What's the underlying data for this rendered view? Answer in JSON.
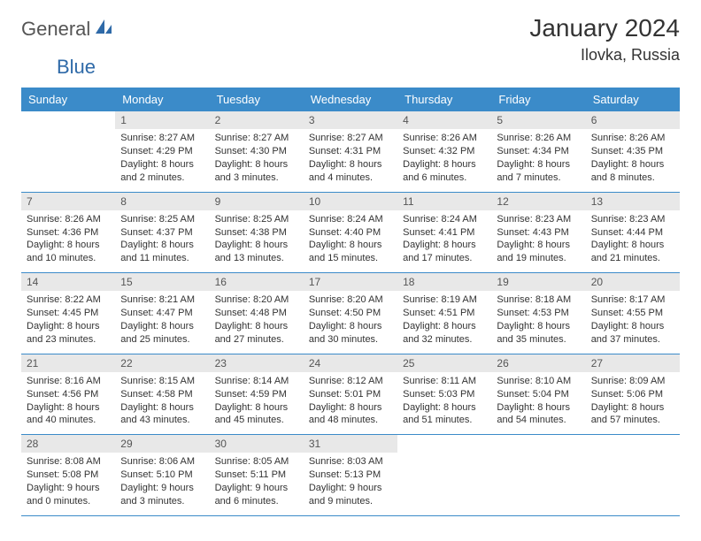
{
  "logo": {
    "word1": "General",
    "word2": "Blue",
    "icon_color": "#2f6aa8"
  },
  "title": "January 2024",
  "location": "Ilovka, Russia",
  "header_bg": "#3b8bc9",
  "day_headers": [
    "Sunday",
    "Monday",
    "Tuesday",
    "Wednesday",
    "Thursday",
    "Friday",
    "Saturday"
  ],
  "first_weekday_index": 1,
  "days": [
    {
      "n": 1,
      "sunrise": "8:27 AM",
      "sunset": "4:29 PM",
      "daylight": "8 hours and 2 minutes."
    },
    {
      "n": 2,
      "sunrise": "8:27 AM",
      "sunset": "4:30 PM",
      "daylight": "8 hours and 3 minutes."
    },
    {
      "n": 3,
      "sunrise": "8:27 AM",
      "sunset": "4:31 PM",
      "daylight": "8 hours and 4 minutes."
    },
    {
      "n": 4,
      "sunrise": "8:26 AM",
      "sunset": "4:32 PM",
      "daylight": "8 hours and 6 minutes."
    },
    {
      "n": 5,
      "sunrise": "8:26 AM",
      "sunset": "4:34 PM",
      "daylight": "8 hours and 7 minutes."
    },
    {
      "n": 6,
      "sunrise": "8:26 AM",
      "sunset": "4:35 PM",
      "daylight": "8 hours and 8 minutes."
    },
    {
      "n": 7,
      "sunrise": "8:26 AM",
      "sunset": "4:36 PM",
      "daylight": "8 hours and 10 minutes."
    },
    {
      "n": 8,
      "sunrise": "8:25 AM",
      "sunset": "4:37 PM",
      "daylight": "8 hours and 11 minutes."
    },
    {
      "n": 9,
      "sunrise": "8:25 AM",
      "sunset": "4:38 PM",
      "daylight": "8 hours and 13 minutes."
    },
    {
      "n": 10,
      "sunrise": "8:24 AM",
      "sunset": "4:40 PM",
      "daylight": "8 hours and 15 minutes."
    },
    {
      "n": 11,
      "sunrise": "8:24 AM",
      "sunset": "4:41 PM",
      "daylight": "8 hours and 17 minutes."
    },
    {
      "n": 12,
      "sunrise": "8:23 AM",
      "sunset": "4:43 PM",
      "daylight": "8 hours and 19 minutes."
    },
    {
      "n": 13,
      "sunrise": "8:23 AM",
      "sunset": "4:44 PM",
      "daylight": "8 hours and 21 minutes."
    },
    {
      "n": 14,
      "sunrise": "8:22 AM",
      "sunset": "4:45 PM",
      "daylight": "8 hours and 23 minutes."
    },
    {
      "n": 15,
      "sunrise": "8:21 AM",
      "sunset": "4:47 PM",
      "daylight": "8 hours and 25 minutes."
    },
    {
      "n": 16,
      "sunrise": "8:20 AM",
      "sunset": "4:48 PM",
      "daylight": "8 hours and 27 minutes."
    },
    {
      "n": 17,
      "sunrise": "8:20 AM",
      "sunset": "4:50 PM",
      "daylight": "8 hours and 30 minutes."
    },
    {
      "n": 18,
      "sunrise": "8:19 AM",
      "sunset": "4:51 PM",
      "daylight": "8 hours and 32 minutes."
    },
    {
      "n": 19,
      "sunrise": "8:18 AM",
      "sunset": "4:53 PM",
      "daylight": "8 hours and 35 minutes."
    },
    {
      "n": 20,
      "sunrise": "8:17 AM",
      "sunset": "4:55 PM",
      "daylight": "8 hours and 37 minutes."
    },
    {
      "n": 21,
      "sunrise": "8:16 AM",
      "sunset": "4:56 PM",
      "daylight": "8 hours and 40 minutes."
    },
    {
      "n": 22,
      "sunrise": "8:15 AM",
      "sunset": "4:58 PM",
      "daylight": "8 hours and 43 minutes."
    },
    {
      "n": 23,
      "sunrise": "8:14 AM",
      "sunset": "4:59 PM",
      "daylight": "8 hours and 45 minutes."
    },
    {
      "n": 24,
      "sunrise": "8:12 AM",
      "sunset": "5:01 PM",
      "daylight": "8 hours and 48 minutes."
    },
    {
      "n": 25,
      "sunrise": "8:11 AM",
      "sunset": "5:03 PM",
      "daylight": "8 hours and 51 minutes."
    },
    {
      "n": 26,
      "sunrise": "8:10 AM",
      "sunset": "5:04 PM",
      "daylight": "8 hours and 54 minutes."
    },
    {
      "n": 27,
      "sunrise": "8:09 AM",
      "sunset": "5:06 PM",
      "daylight": "8 hours and 57 minutes."
    },
    {
      "n": 28,
      "sunrise": "8:08 AM",
      "sunset": "5:08 PM",
      "daylight": "9 hours and 0 minutes."
    },
    {
      "n": 29,
      "sunrise": "8:06 AM",
      "sunset": "5:10 PM",
      "daylight": "9 hours and 3 minutes."
    },
    {
      "n": 30,
      "sunrise": "8:05 AM",
      "sunset": "5:11 PM",
      "daylight": "9 hours and 6 minutes."
    },
    {
      "n": 31,
      "sunrise": "8:03 AM",
      "sunset": "5:13 PM",
      "daylight": "9 hours and 9 minutes."
    }
  ],
  "labels": {
    "sunrise": "Sunrise:",
    "sunset": "Sunset:",
    "daylight": "Daylight:"
  }
}
